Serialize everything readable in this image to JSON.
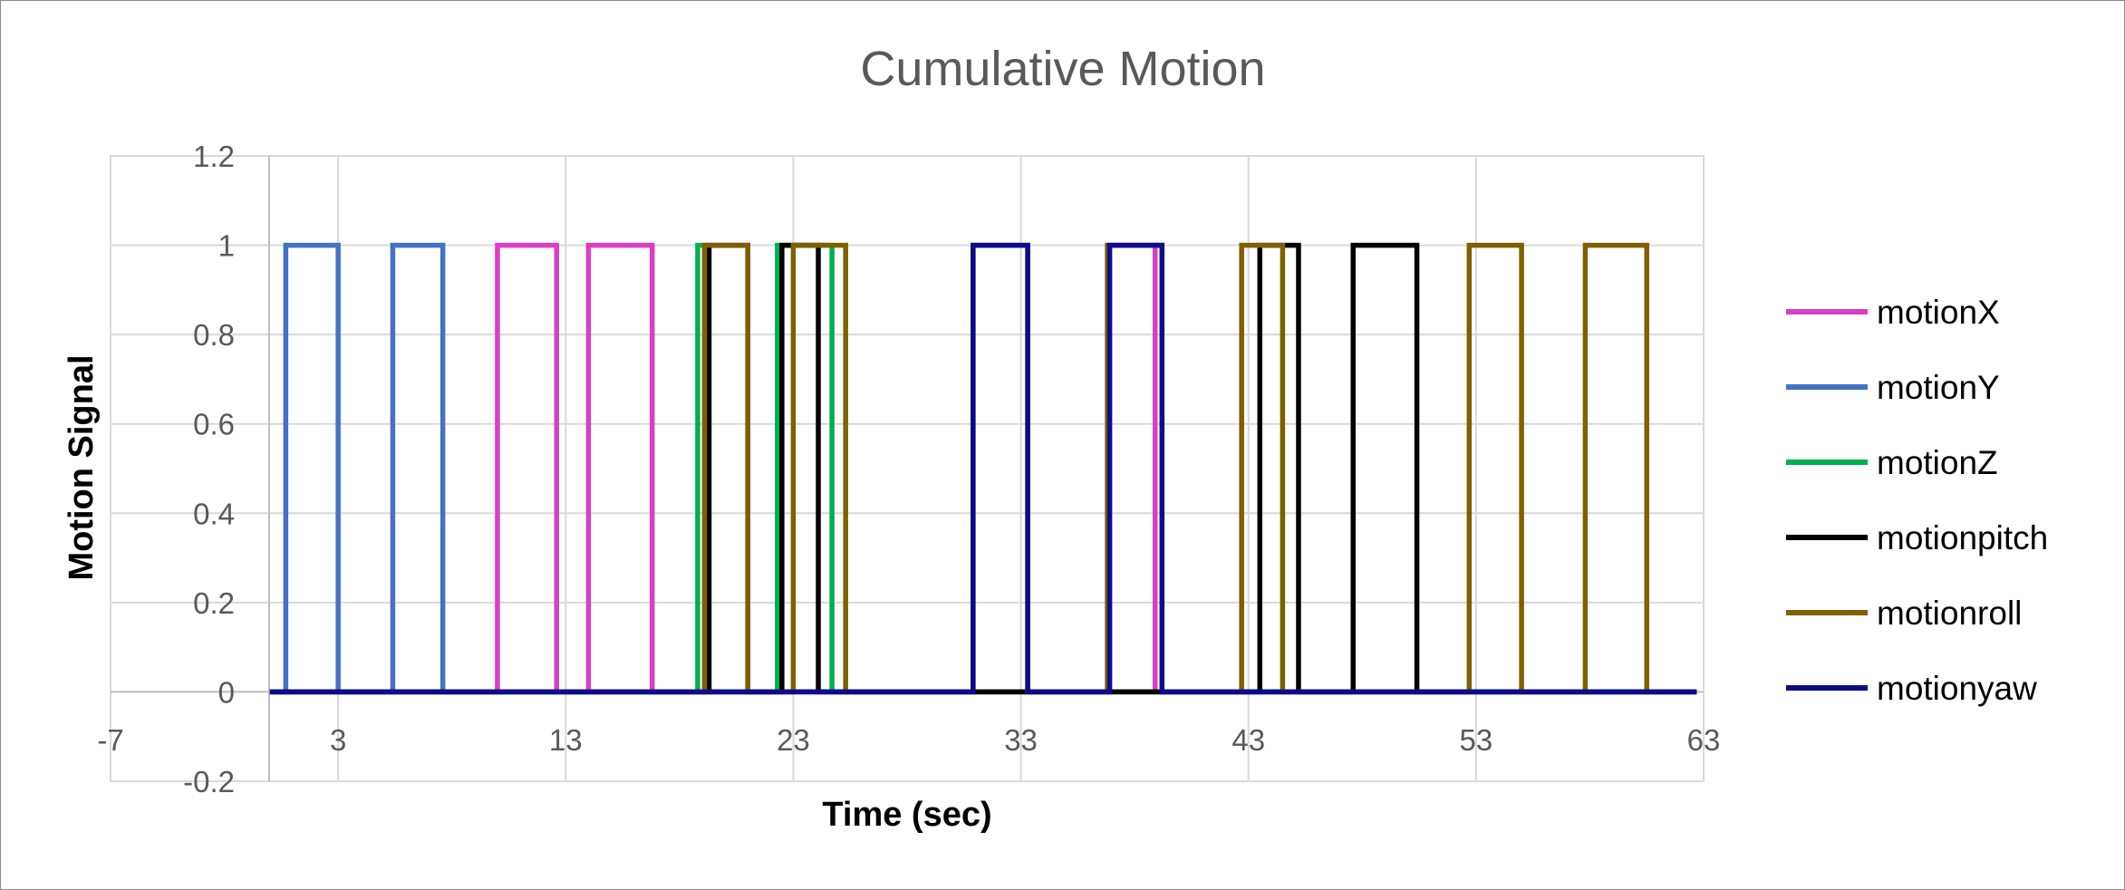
{
  "chart_data": {
    "type": "line",
    "title": "Cumulative Motion",
    "xlabel": "Time (sec)",
    "ylabel": "Motion Signal",
    "xlim": [
      -7,
      63
    ],
    "ylim": [
      -0.2,
      1.2
    ],
    "x_ticks": [
      -7,
      3,
      13,
      23,
      33,
      43,
      53,
      63
    ],
    "y_ticks": [
      -0.2,
      0,
      0.2,
      0.4,
      0.6,
      0.8,
      1,
      1.2
    ],
    "y_tick_labels": [
      "-0.2",
      "0",
      "0.2",
      "0.4",
      "0.6",
      "0.8",
      "1",
      "1.2"
    ],
    "x_tick_labels": [
      "-7",
      "3",
      "13",
      "23",
      "33",
      "43",
      "53",
      "63"
    ],
    "grid": true,
    "legend_position": "right",
    "series_range": [
      0,
      62.7
    ],
    "series": [
      {
        "name": "motionX",
        "color": "#d83fc5",
        "pulses": [
          [
            10,
            12.6
          ],
          [
            14,
            16.8
          ],
          [
            36.9,
            38.9
          ]
        ]
      },
      {
        "name": "motionY",
        "color": "#4472c4",
        "pulses": [
          [
            0.7,
            3
          ],
          [
            5.4,
            7.6
          ]
        ]
      },
      {
        "name": "motionZ",
        "color": "#00b050",
        "pulses": [
          [
            18.8,
            19.1
          ],
          [
            22.3,
            24.7
          ]
        ]
      },
      {
        "name": "motionpitch",
        "color": "#000000",
        "pulses": [
          [
            19.3,
            21.0
          ],
          [
            22.5,
            24.1
          ],
          [
            43.5,
            45.2
          ],
          [
            47.6,
            50.4
          ]
        ]
      },
      {
        "name": "motionroll",
        "color": "#7f6000",
        "pulses": [
          [
            19.1,
            21.0
          ],
          [
            23.0,
            25.3
          ],
          [
            30.9,
            33.3
          ],
          [
            36.8,
            39.2
          ],
          [
            42.7,
            44.5
          ],
          [
            52.7,
            55.0
          ],
          [
            57.8,
            60.5
          ]
        ]
      },
      {
        "name": "motionyaw",
        "color": "#0c0c8c",
        "pulses": [
          [
            30.9,
            33.3
          ],
          [
            36.9,
            39.2
          ]
        ]
      }
    ]
  }
}
